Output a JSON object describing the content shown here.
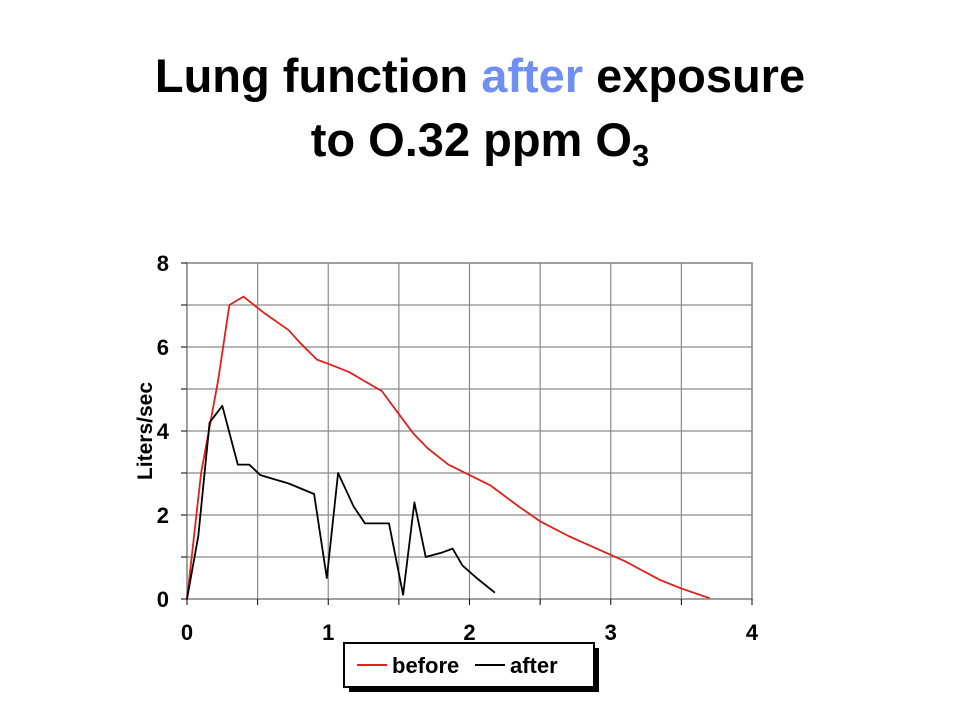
{
  "title": {
    "line1_prefix": "Lung function ",
    "line1_accent": "after",
    "line1_suffix": " exposure",
    "line2_main": "to O.32 ppm O",
    "line2_sub": "3",
    "accent_color": "#6f8ff3"
  },
  "chart_data": {
    "type": "line",
    "title": "",
    "xlabel": "",
    "ylabel": "Liters/sec",
    "xlim": [
      0,
      4
    ],
    "ylim": [
      0,
      8
    ],
    "xticks": [
      0,
      1,
      2,
      3,
      4
    ],
    "yticks": [
      0,
      2,
      4,
      6,
      8
    ],
    "grid": true,
    "legend_position": "bottom-center",
    "series": [
      {
        "name": "before",
        "color": "#e0201b",
        "x": [
          0.0,
          0.1,
          0.22,
          0.3,
          0.4,
          0.55,
          0.72,
          0.8,
          0.92,
          1.0,
          1.15,
          1.25,
          1.38,
          1.5,
          1.6,
          1.7,
          1.85,
          2.0,
          2.15,
          2.35,
          2.5,
          2.7,
          2.9,
          3.1,
          3.35,
          3.5,
          3.7
        ],
        "y": [
          0.0,
          3.0,
          5.2,
          7.0,
          7.2,
          6.8,
          6.4,
          6.1,
          5.7,
          5.6,
          5.4,
          5.2,
          4.95,
          4.4,
          3.95,
          3.6,
          3.2,
          2.95,
          2.7,
          2.2,
          1.85,
          1.5,
          1.2,
          0.9,
          0.45,
          0.25,
          0.02
        ]
      },
      {
        "name": "after",
        "color": "#000000",
        "x": [
          0.0,
          0.08,
          0.16,
          0.25,
          0.36,
          0.44,
          0.52,
          0.72,
          0.9,
          0.99,
          1.07,
          1.18,
          1.26,
          1.43,
          1.53,
          1.61,
          1.69,
          1.8,
          1.88,
          1.95,
          2.05,
          2.18
        ],
        "y": [
          0.0,
          1.5,
          4.2,
          4.6,
          3.2,
          3.2,
          2.95,
          2.75,
          2.5,
          0.5,
          3.0,
          2.2,
          1.8,
          1.8,
          0.1,
          2.3,
          1.0,
          1.1,
          1.2,
          0.8,
          0.5,
          0.15
        ]
      }
    ]
  }
}
